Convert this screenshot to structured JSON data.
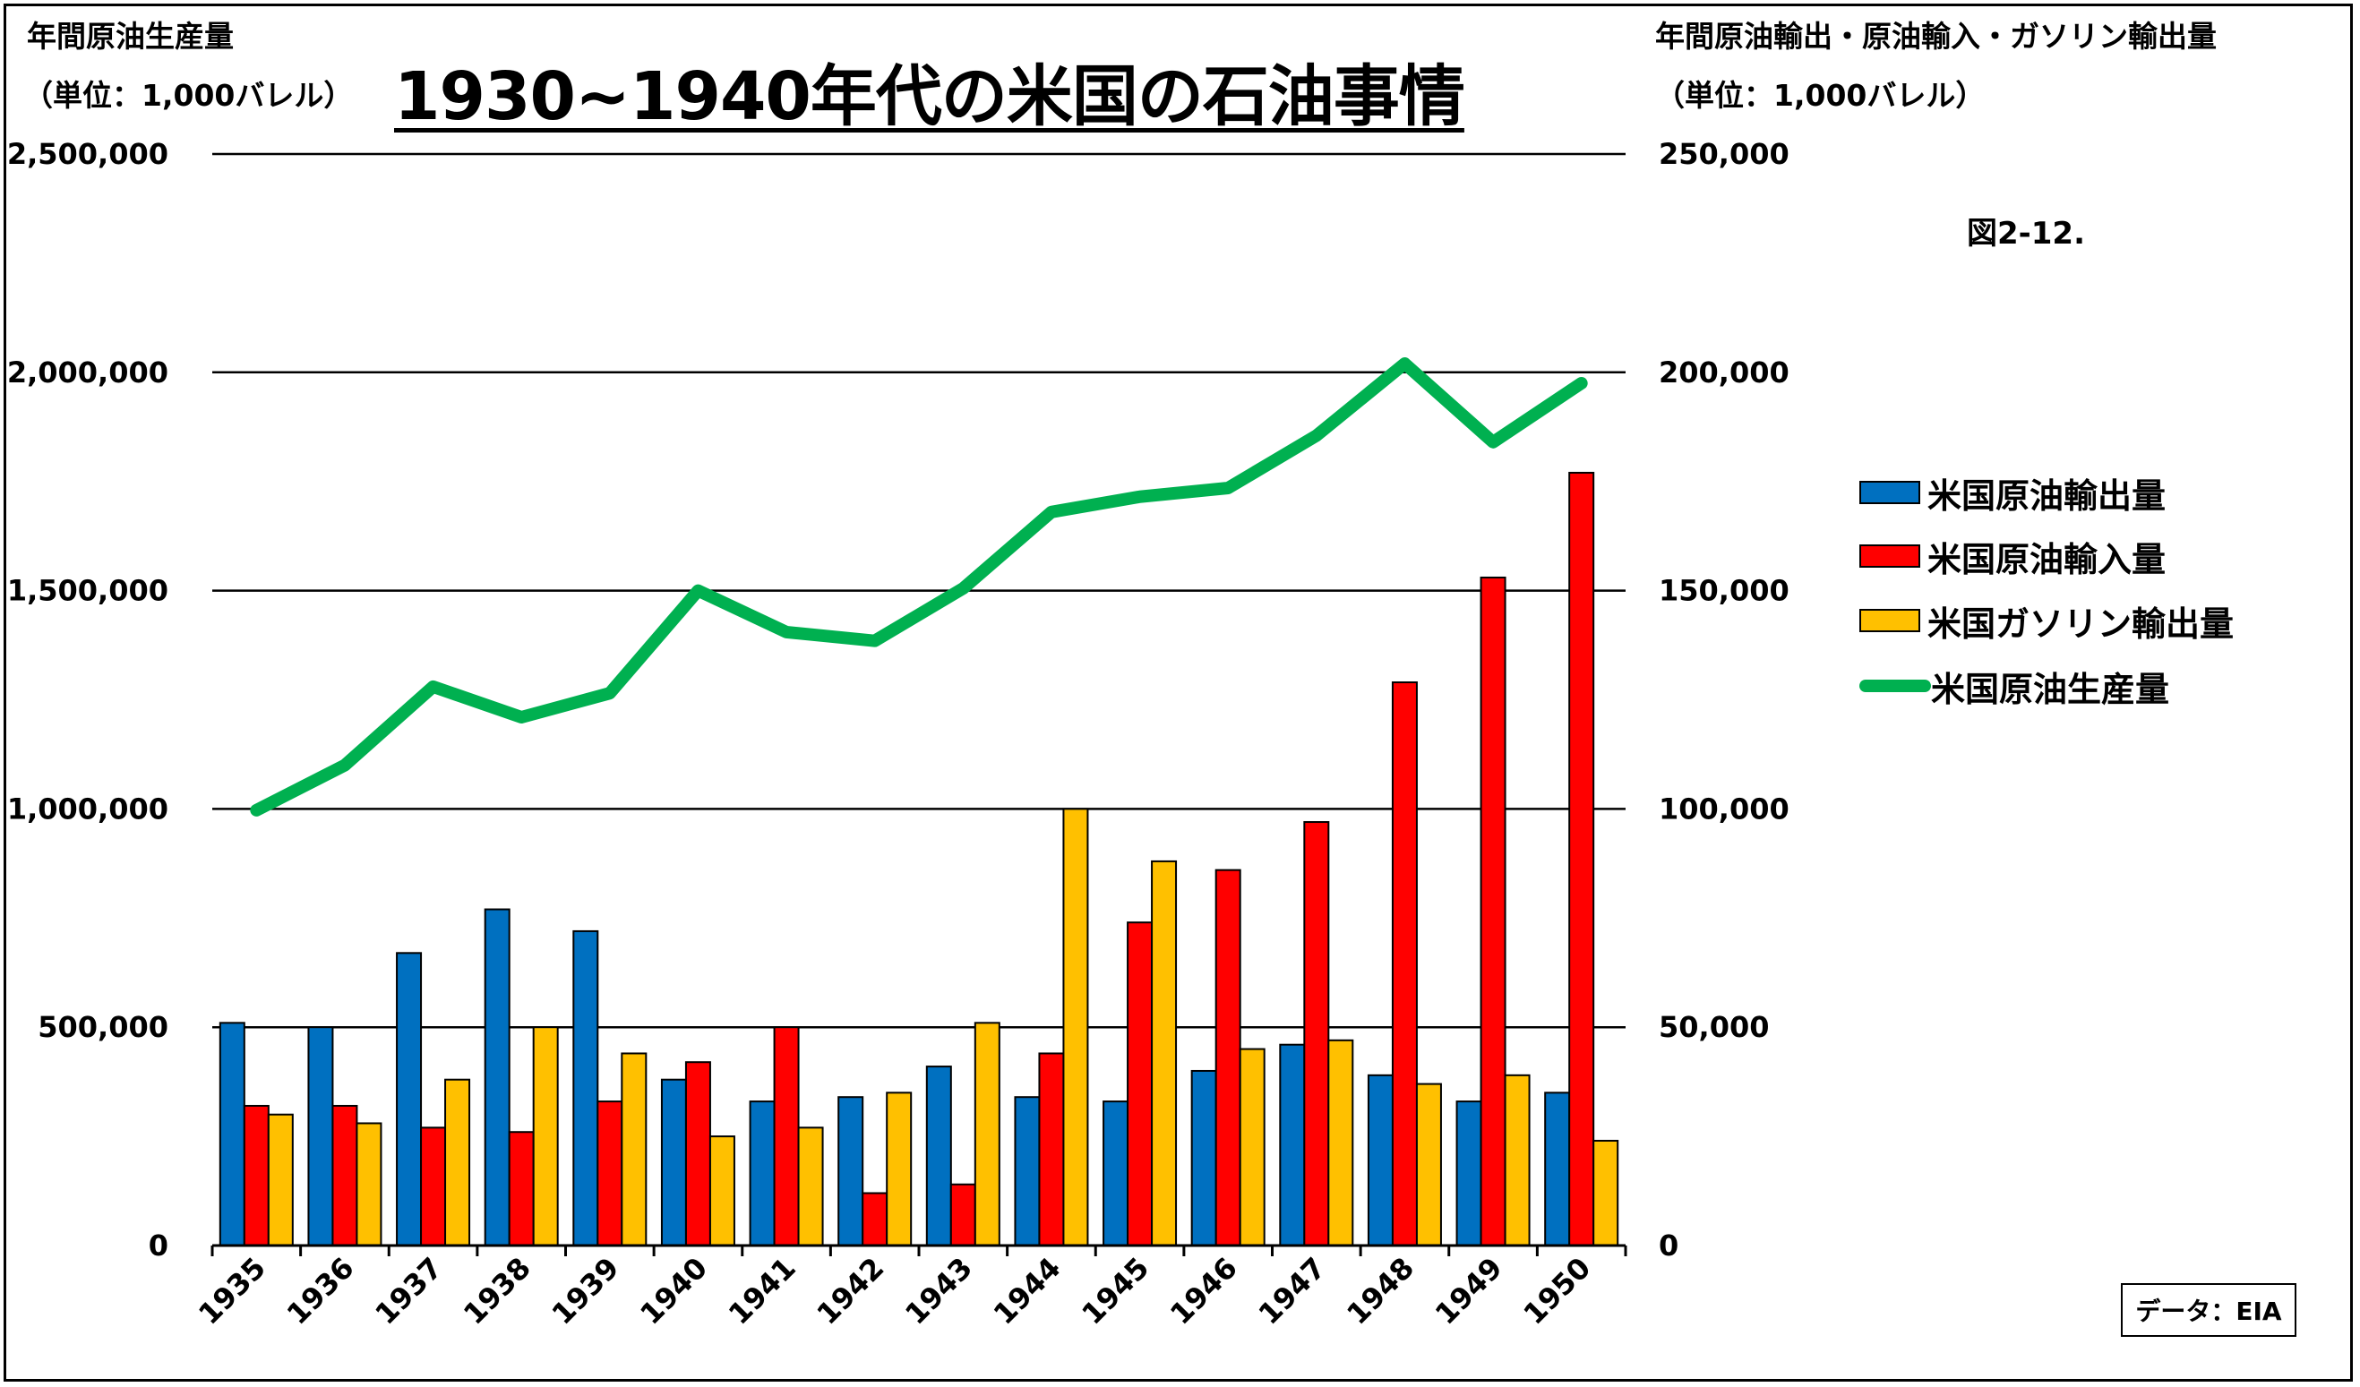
{
  "chart_data": {
    "type": "bar",
    "title": "1930~1940年代の米国の石油事情",
    "figure_label": "図2-12.",
    "source": "データ：EIA",
    "left_axis": {
      "title": "年間原油生産量",
      "unit": "（単位：1,000バレル）",
      "range": [
        0,
        2500000
      ],
      "ticks": [
        0,
        500000,
        1000000,
        1500000,
        2000000,
        2500000
      ],
      "tick_labels": [
        "0",
        "500,000",
        "1,000,000",
        "1,500,000",
        "2,000,000",
        "2,500,000"
      ]
    },
    "right_axis": {
      "title": "年間原油輸出・原油輸入・ガソリン輸出量",
      "unit": "（単位：1,000バレル）",
      "range": [
        0,
        250000
      ],
      "ticks": [
        0,
        50000,
        100000,
        150000,
        200000,
        250000
      ],
      "tick_labels": [
        "0",
        "50,000",
        "100,000",
        "150,000",
        "200,000",
        "250,000"
      ]
    },
    "categories": [
      "1935",
      "1936",
      "1937",
      "1938",
      "1939",
      "1940",
      "1941",
      "1942",
      "1943",
      "1944",
      "1945",
      "1946",
      "1947",
      "1948",
      "1949",
      "1950"
    ],
    "series": [
      {
        "name": "米国原油輸出量",
        "type": "bar",
        "axis": "right",
        "color": "#0070c0",
        "values": [
          51000,
          50000,
          67000,
          77000,
          72000,
          38000,
          33000,
          34000,
          41000,
          34000,
          33000,
          40000,
          46000,
          39000,
          33000,
          35000
        ]
      },
      {
        "name": "米国原油輸入量",
        "type": "bar",
        "axis": "right",
        "color": "#ff0000",
        "values": [
          32000,
          32000,
          27000,
          26000,
          33000,
          42000,
          50000,
          12000,
          14000,
          44000,
          74000,
          86000,
          97000,
          129000,
          153000,
          177000
        ]
      },
      {
        "name": "米国ガソリン輸出量",
        "type": "bar",
        "axis": "right",
        "color": "#ffc000",
        "values": [
          30000,
          28000,
          38000,
          50000,
          44000,
          25000,
          27000,
          35000,
          51000,
          100000,
          88000,
          45000,
          47000,
          37000,
          39000,
          24000
        ]
      },
      {
        "name": "米国原油生産量",
        "type": "line",
        "axis": "left",
        "color": "#00b050",
        "values": [
          997000,
          1100000,
          1280000,
          1210000,
          1265000,
          1500000,
          1405000,
          1385000,
          1505000,
          1680000,
          1715000,
          1735000,
          1855000,
          2020000,
          1840000,
          1975000
        ]
      }
    ],
    "legend_position": "right"
  }
}
